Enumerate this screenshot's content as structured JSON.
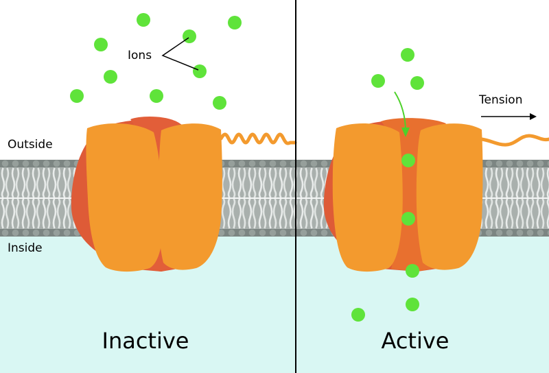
{
  "labels": {
    "outside": "Outside",
    "inside": "Inside",
    "ions": "Ions",
    "tension": "Tension"
  },
  "panels": {
    "left_title": "Inactive",
    "right_title": "Active"
  },
  "colors": {
    "ion": "#5fe33a",
    "channel_light": "#f39a2e",
    "channel_dark": "#de5b37",
    "pore_active": "#e8702f",
    "inside_fluid": "#d9f7f3",
    "membrane": "#a3aaa7",
    "arrow_green": "#4dd12a"
  },
  "icons": [
    "ion-particle",
    "lipid-bilayer",
    "mechanosensitive-channel"
  ]
}
